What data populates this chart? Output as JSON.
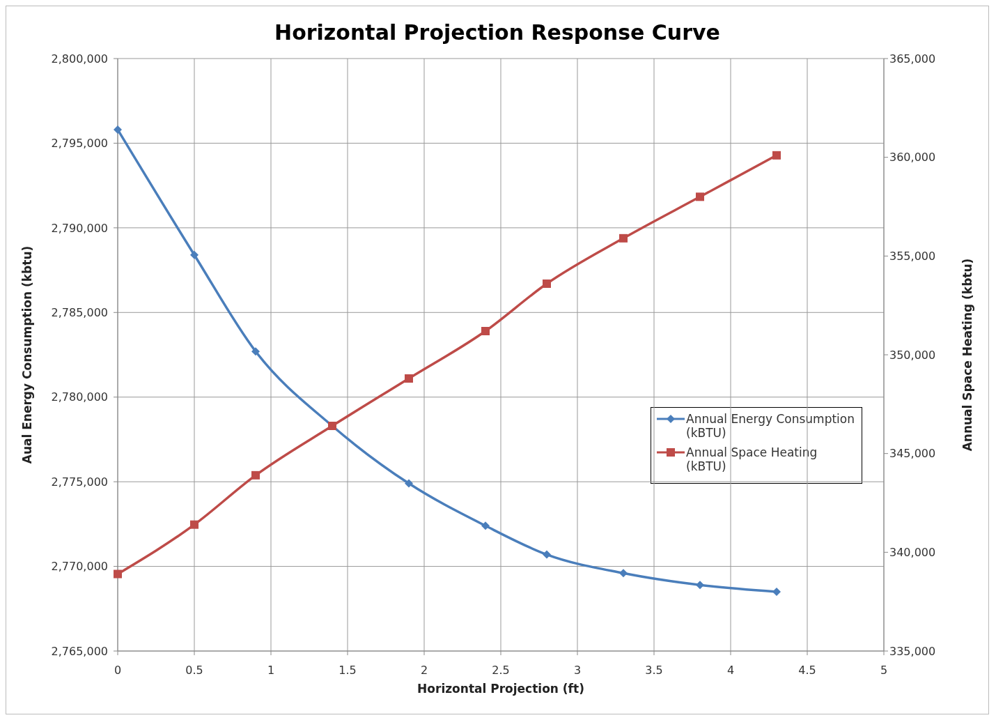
{
  "chart_data": {
    "type": "line",
    "title": "Horizontal Projection Response Curve",
    "xlabel": "Horizontal Projection (ft)",
    "ylabel": "Aual Energy Consumption (kbtu)",
    "y2label": "Annual Space Heating (kbtu)",
    "x": [
      0,
      0.5,
      0.9,
      1.4,
      1.9,
      2.4,
      2.8,
      3.3,
      3.8,
      4.3
    ],
    "series": [
      {
        "name": "Annual Energy Consumption (kBTU)",
        "color": "#4a7ebb",
        "marker": "diamond",
        "values": [
          2795800,
          2788400,
          2782700,
          2778300,
          2774900,
          2772400,
          2770700,
          2769600,
          2768900,
          2768500
        ]
      },
      {
        "name": "Annual Space Heating (kBTU)",
        "color": "#be4b48",
        "marker": "square",
        "axis": "y2",
        "values": [
          338900,
          341400,
          343900,
          346400,
          348800,
          351200,
          353600,
          355900,
          358000,
          360100
        ]
      }
    ],
    "xlim": [
      0,
      5
    ],
    "xticks": [
      0,
      0.5,
      1,
      1.5,
      2,
      2.5,
      3,
      3.5,
      4,
      4.5,
      5
    ],
    "ylim": [
      2765000,
      2800000
    ],
    "yticks": [
      {
        "value": 2765000,
        "label": "2,765,000"
      },
      {
        "value": 2770000,
        "label": "2,770,000"
      },
      {
        "value": 2775000,
        "label": "2,775,000"
      },
      {
        "value": 2780000,
        "label": "2,780,000"
      },
      {
        "value": 2785000,
        "label": "2,785,000"
      },
      {
        "value": 2790000,
        "label": "2,790,000"
      },
      {
        "value": 2795000,
        "label": "2,795,000"
      },
      {
        "value": 2800000,
        "label": "2,800,000"
      }
    ],
    "y2lim": [
      335000,
      365000
    ],
    "y2ticks": [
      {
        "value": 335000,
        "label": "335,000"
      },
      {
        "value": 340000,
        "label": "340,000"
      },
      {
        "value": 345000,
        "label": "345,000"
      },
      {
        "value": 350000,
        "label": "350,000"
      },
      {
        "value": 355000,
        "label": "355,000"
      },
      {
        "value": 360000,
        "label": "360,000"
      },
      {
        "value": 365000,
        "label": "365,000"
      }
    ],
    "grid": true,
    "legend": "right",
    "line_style": "solid"
  }
}
